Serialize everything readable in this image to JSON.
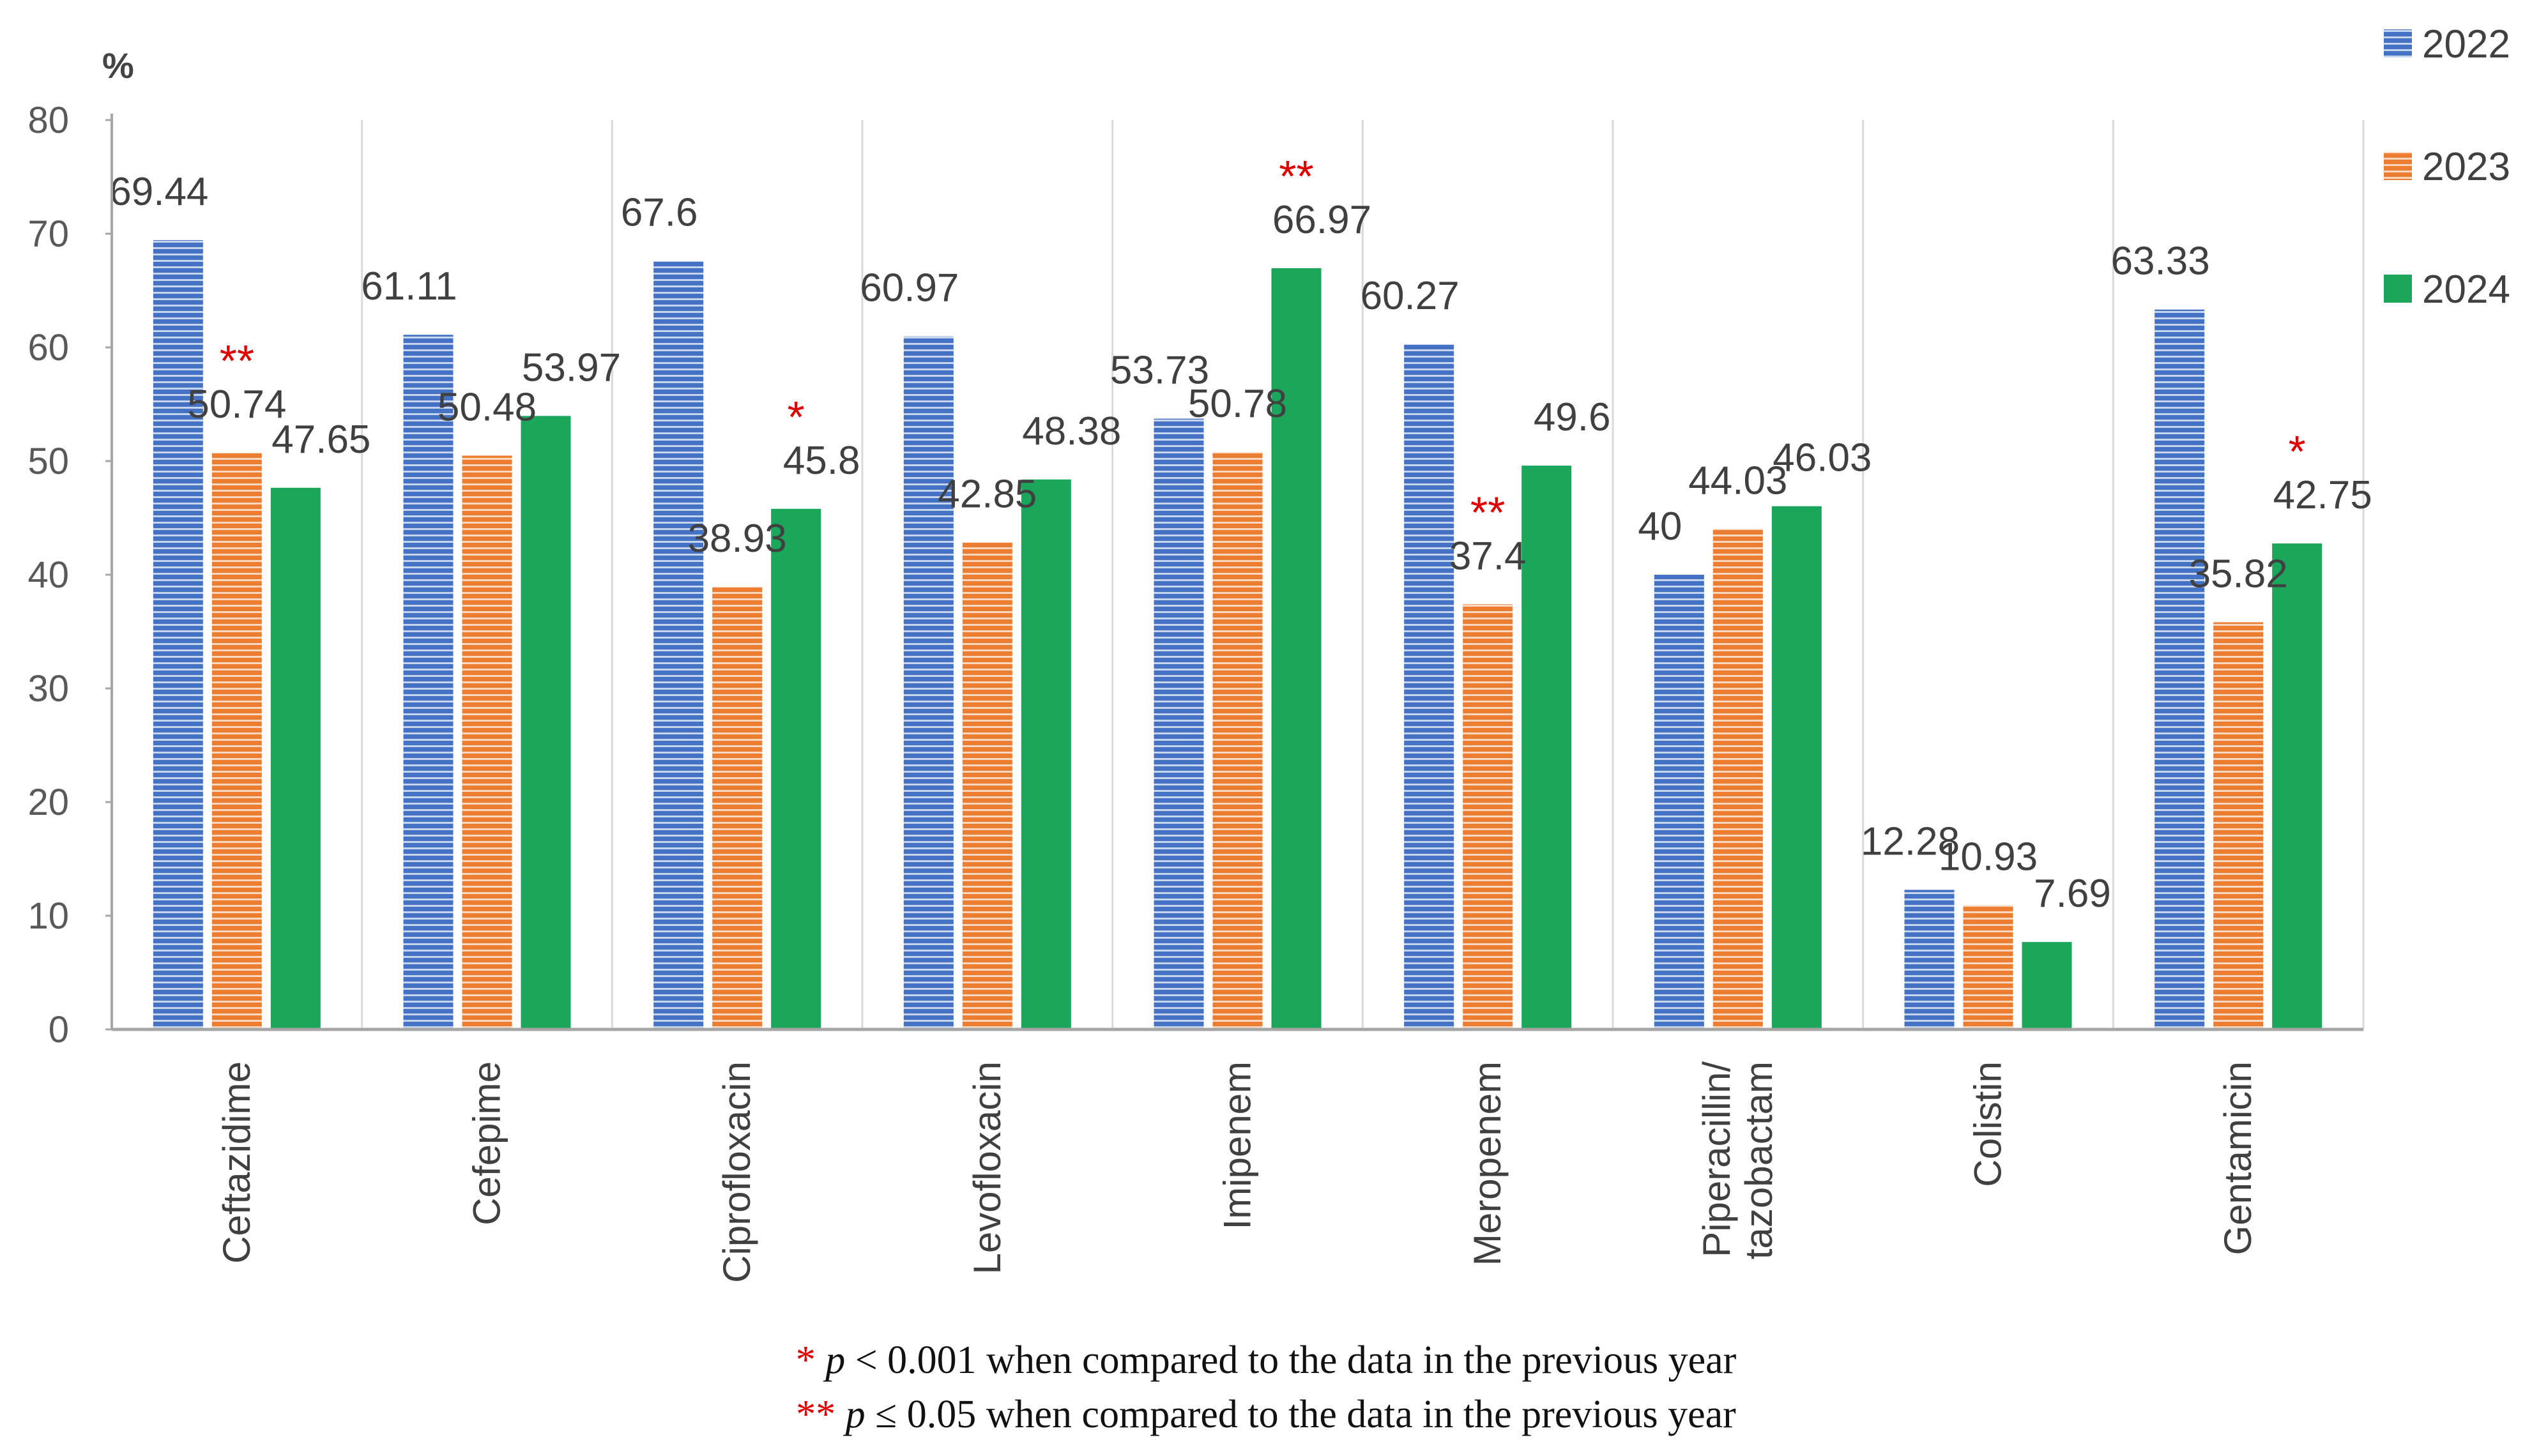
{
  "chart_data": {
    "type": "bar",
    "ylabel": "%",
    "ylim": [
      0,
      80
    ],
    "yticks": [
      0,
      10,
      20,
      30,
      40,
      50,
      60,
      70,
      80
    ],
    "categories": [
      "Ceftazidime",
      "Cefepime",
      "Ciprofloxacin",
      "Levofloxacin",
      "Imipenem",
      "Meropenem",
      "Piperacillin/ tazobactam",
      "Colistin",
      "Gentamicin"
    ],
    "category_lines": [
      [
        "Ceftazidime"
      ],
      [
        "Cefepime"
      ],
      [
        "Ciprofloxacin"
      ],
      [
        "Levofloxacin"
      ],
      [
        "Imipenem"
      ],
      [
        "Meropenem"
      ],
      [
        "Piperacillin/",
        "tazobactam"
      ],
      [
        "Colistin"
      ],
      [
        "Gentamicin"
      ]
    ],
    "series": [
      {
        "name": "2022",
        "color": "#4472C4",
        "values": [
          69.44,
          61.11,
          67.6,
          60.97,
          53.73,
          60.27,
          40,
          12.28,
          63.33
        ]
      },
      {
        "name": "2023",
        "color": "#ED7D31",
        "values": [
          50.74,
          50.48,
          38.93,
          42.85,
          50.78,
          37.4,
          44.03,
          10.93,
          35.82
        ]
      },
      {
        "name": "2024",
        "color": "#1AA75B",
        "values": [
          47.65,
          53.97,
          45.8,
          48.38,
          66.97,
          49.6,
          46.03,
          7.69,
          42.75
        ]
      }
    ],
    "significance": [
      {
        "category": "Ceftazidime",
        "series": "2023",
        "mark": "**"
      },
      {
        "category": "Ciprofloxacin",
        "series": "2024",
        "mark": "*"
      },
      {
        "category": "Imipenem",
        "series": "2024",
        "mark": "**"
      },
      {
        "category": "Meropenem",
        "series": "2023",
        "mark": "**"
      },
      {
        "category": "Gentamicin",
        "series": "2024",
        "mark": "*"
      }
    ],
    "legend": [
      "2022",
      "2023",
      "2024"
    ]
  },
  "footnotes": [
    {
      "mark": "*",
      "pvar": "p",
      "text": " < 0.001 when compared to the data in the previous year"
    },
    {
      "mark": "**",
      "pvar": "p",
      "text": " ≤ 0.05 when compared to the data in the previous year"
    }
  ]
}
